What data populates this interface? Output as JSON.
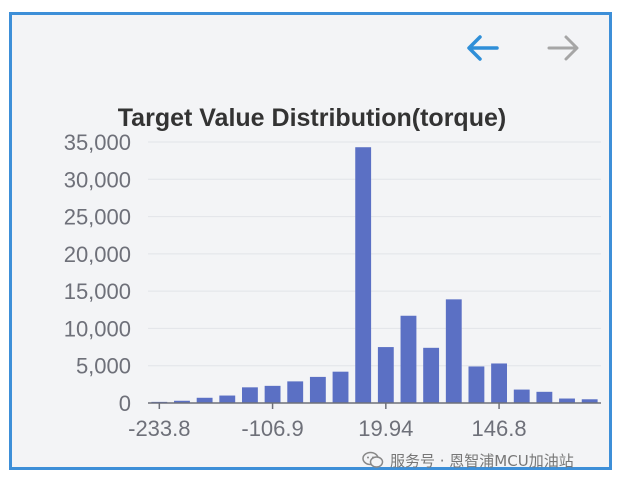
{
  "toolbar": {
    "back_icon": "arrow-left-icon",
    "forward_icon": "arrow-right-icon",
    "back_color": "#2f8fd8",
    "forward_color": "#a6a6a6"
  },
  "chart_data": {
    "type": "bar",
    "title": "Target Value Distribution(torque)",
    "xlabel": "",
    "ylabel": "",
    "bin_count": 20,
    "ylim": [
      0,
      35000
    ],
    "yticks": [
      0,
      5000,
      10000,
      15000,
      20000,
      25000,
      30000,
      35000
    ],
    "ytick_labels": [
      "0",
      "5,000",
      "10,000",
      "15,000",
      "20,000",
      "25,000",
      "30,000",
      "35,000"
    ],
    "xticks": [
      -233.8,
      -106.9,
      19.94,
      146.8
    ],
    "xtick_labels": [
      "-233.8",
      "-106.9",
      "19.94",
      "146.8"
    ],
    "x_tick_bin_index": [
      0,
      5,
      10,
      15
    ],
    "values": [
      150,
      300,
      700,
      1000,
      2100,
      2300,
      2900,
      3500,
      4200,
      34300,
      7500,
      11700,
      7400,
      13900,
      4900,
      5300,
      1800,
      1500,
      600,
      500
    ],
    "bar_color": "#5b70c4",
    "grid": true,
    "legend": "none"
  },
  "watermark": {
    "text": "服务号 · 恩智浦MCU加油站",
    "icon": "wechat-icon"
  }
}
